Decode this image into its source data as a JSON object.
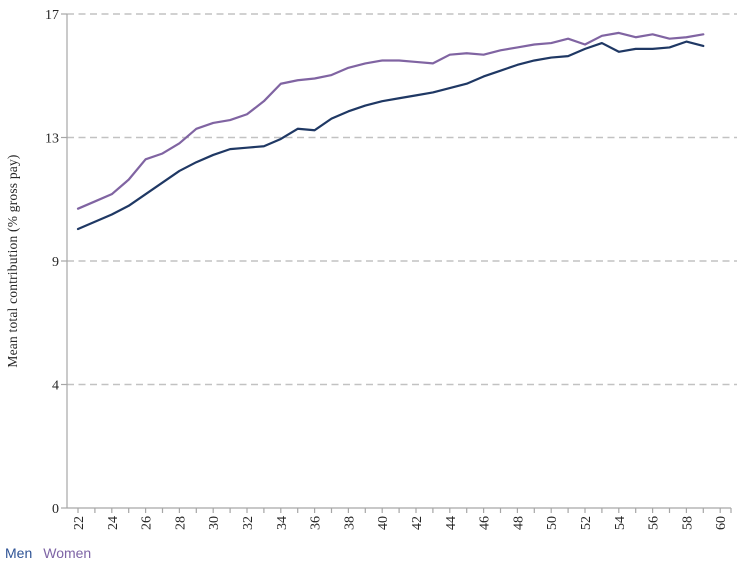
{
  "legend": {
    "men_label": "Men",
    "women_label": "Women"
  },
  "colors": {
    "men_line": "#1f3864",
    "women_line": "#8064a2",
    "men_legend_text": "#2e5395",
    "women_legend_text": "#7e64a5",
    "axis": "#a6a6a6",
    "gridline": "#c2c2c2",
    "label_text": "#262626"
  },
  "chart_data": {
    "type": "line",
    "title": "",
    "xlabel": "",
    "ylabel": "Mean total contribution (% gross pay)",
    "x": [
      22,
      23,
      24,
      25,
      26,
      27,
      28,
      29,
      30,
      31,
      32,
      33,
      34,
      35,
      36,
      37,
      38,
      39,
      40,
      41,
      42,
      43,
      44,
      45,
      46,
      47,
      48,
      49,
      50,
      51,
      52,
      53,
      54,
      55,
      56,
      57,
      58,
      59
    ],
    "series": [
      {
        "name": "Men",
        "color": "#1f3864",
        "values": [
          9.6,
          9.85,
          10.1,
          10.4,
          10.8,
          11.2,
          11.6,
          11.9,
          12.15,
          12.35,
          12.4,
          12.45,
          12.7,
          13.05,
          13.0,
          13.4,
          13.65,
          13.85,
          14.0,
          14.1,
          14.2,
          14.3,
          14.45,
          14.6,
          14.85,
          15.05,
          15.25,
          15.4,
          15.5,
          15.55,
          15.8,
          16.0,
          15.7,
          15.8,
          15.8,
          15.85,
          16.05,
          15.9
        ]
      },
      {
        "name": "Women",
        "color": "#8064a2",
        "values": [
          10.3,
          10.55,
          10.8,
          11.3,
          12.0,
          12.2,
          12.55,
          13.05,
          13.25,
          13.35,
          13.55,
          14.0,
          14.6,
          14.72,
          14.78,
          14.9,
          15.15,
          15.3,
          15.4,
          15.4,
          15.35,
          15.3,
          15.6,
          15.65,
          15.6,
          15.75,
          15.85,
          15.95,
          16.0,
          16.15,
          15.95,
          16.25,
          16.35,
          16.2,
          16.3,
          16.15,
          16.2,
          16.3
        ]
      }
    ],
    "x_axis": {
      "tick_every_year_from": 22,
      "tick_every_year_to": 60,
      "labeled_ticks": [
        "22",
        "24",
        "26",
        "28",
        "30",
        "32",
        "34",
        "36",
        "38",
        "40",
        "42",
        "44",
        "46",
        "48",
        "50",
        "52",
        "54",
        "56",
        "58",
        "60"
      ],
      "label_rotation_deg": -90
    },
    "y_axis": {
      "min": 0,
      "max": 17,
      "tick_values": [
        0,
        4.25,
        8.5,
        12.75,
        17
      ],
      "tick_labels": [
        "0",
        "4",
        "9",
        "13",
        "17"
      ],
      "gridlines": "dashed, horizontal, at labeled ticks above 0"
    },
    "legend_position": "bottom-left"
  }
}
